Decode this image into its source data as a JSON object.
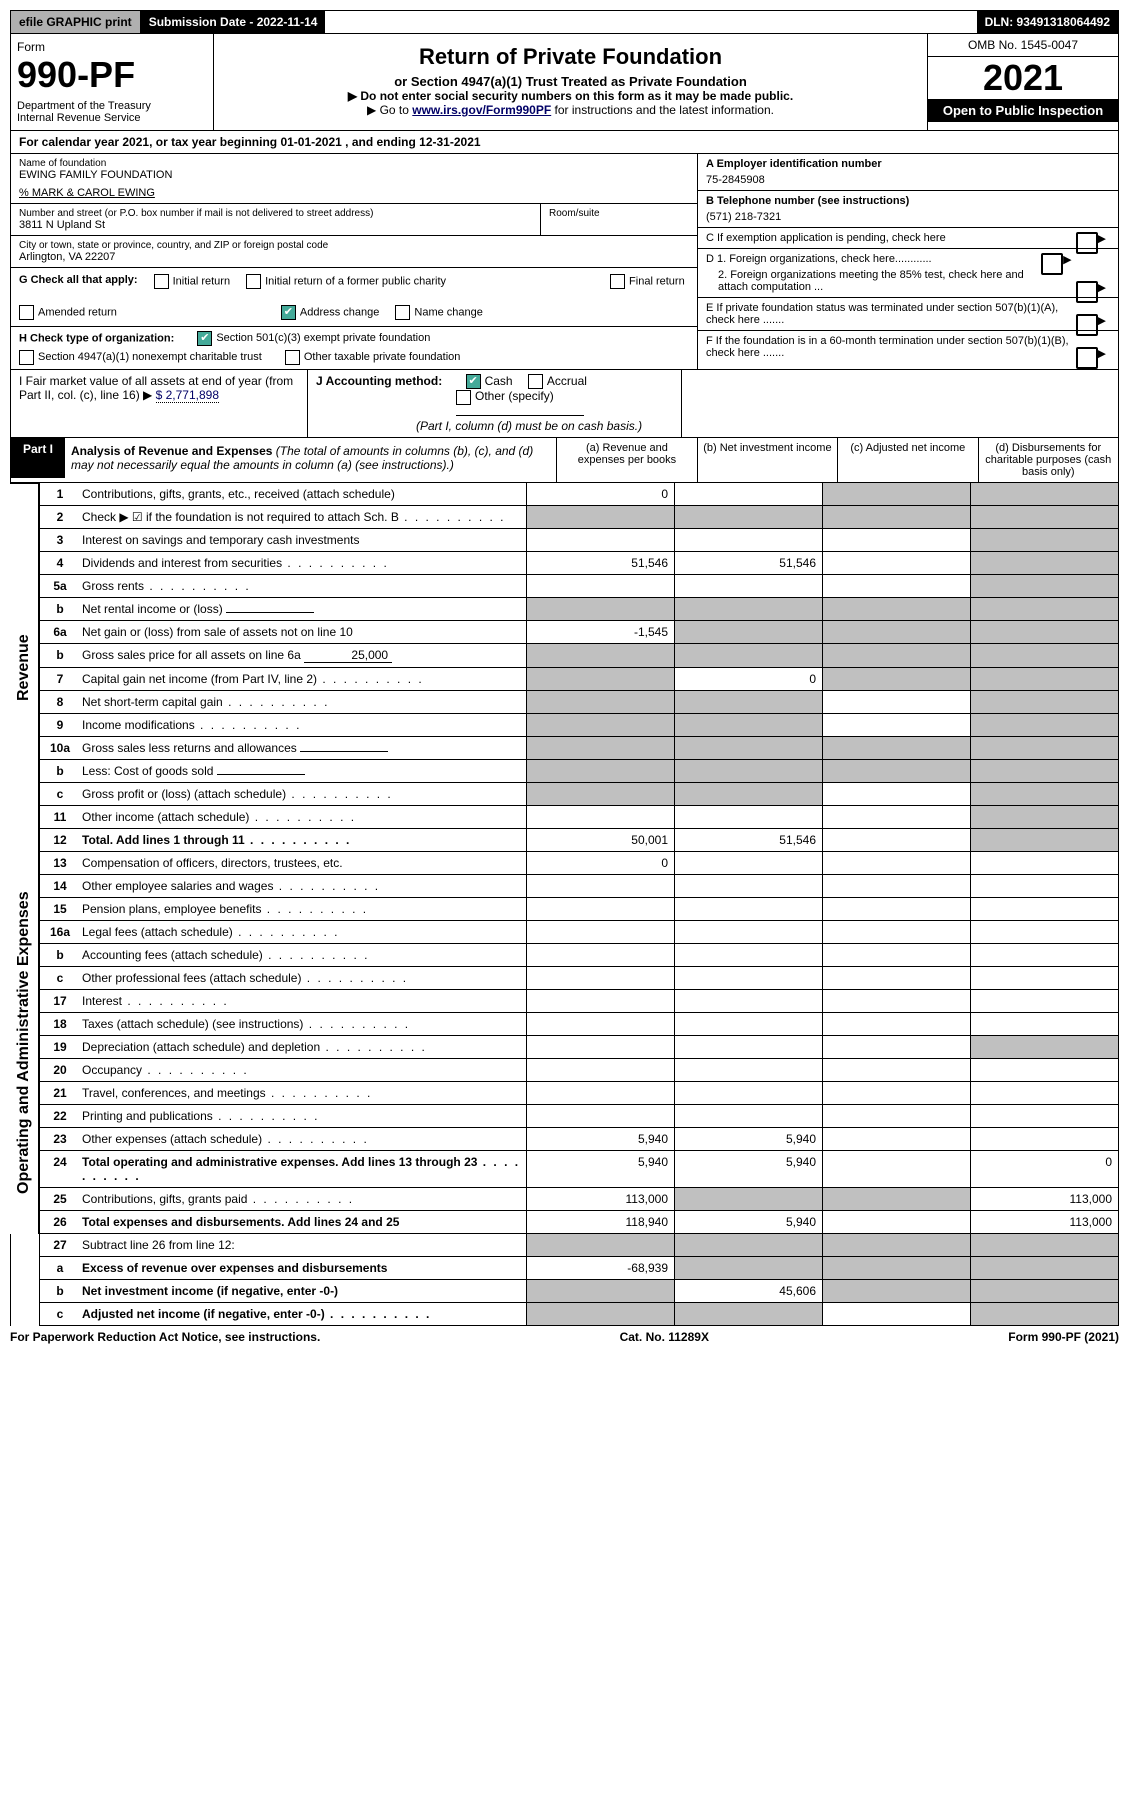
{
  "top": {
    "efile": "efile GRAPHIC print",
    "submission": "Submission Date - 2022-11-14",
    "dln": "DLN: 93491318064492"
  },
  "header": {
    "form_label": "Form",
    "form_number": "990-PF",
    "dept": "Department of the Treasury\nInternal Revenue Service",
    "title": "Return of Private Foundation",
    "subtitle": "or Section 4947(a)(1) Trust Treated as Private Foundation",
    "inst1": "▶ Do not enter social security numbers on this form as it may be made public.",
    "inst2_pre": "▶ Go to ",
    "inst2_link": "www.irs.gov/Form990PF",
    "inst2_post": " for instructions and the latest information.",
    "omb": "OMB No. 1545-0047",
    "year": "2021",
    "open": "Open to Public Inspection"
  },
  "cal_year": "For calendar year 2021, or tax year beginning 01-01-2021          , and ending 12-31-2021",
  "foundation": {
    "name_label": "Name of foundation",
    "name": "EWING FAMILY FOUNDATION",
    "co": "% MARK & CAROL EWING",
    "addr_label": "Number and street (or P.O. box number if mail is not delivered to street address)",
    "addr": "3811 N Upland St",
    "room_label": "Room/suite",
    "city_label": "City or town, state or province, country, and ZIP or foreign postal code",
    "city": "Arlington, VA  22207"
  },
  "right_info": {
    "a_label": "A Employer identification number",
    "a_val": "75-2845908",
    "b_label": "B Telephone number (see instructions)",
    "b_val": "(571) 218-7321",
    "c_label": "C If exemption application is pending, check here",
    "d1": "D 1. Foreign organizations, check here............",
    "d2": "2. Foreign organizations meeting the 85% test, check here and attach computation ...",
    "e_label": "E  If private foundation status was terminated under section 507(b)(1)(A), check here .......",
    "f_label": "F  If the foundation is in a 60-month termination under section 507(b)(1)(B), check here ......."
  },
  "g_check": {
    "label": "G Check all that apply:",
    "opts": [
      "Initial return",
      "Initial return of a former public charity",
      "Final return",
      "Amended return",
      "Address change",
      "Name change"
    ]
  },
  "h_check": {
    "label": "H Check type of organization:",
    "o1": "Section 501(c)(3) exempt private foundation",
    "o2": "Section 4947(a)(1) nonexempt charitable trust",
    "o3": "Other taxable private foundation"
  },
  "ij": {
    "i_label": "I Fair market value of all assets at end of year (from Part II, col. (c), line 16) ▶",
    "i_val": "$  2,771,898",
    "j_label": "J Accounting method:",
    "j_cash": "Cash",
    "j_accrual": "Accrual",
    "j_other": "Other (specify)",
    "j_note": "(Part I, column (d) must be on cash basis.)"
  },
  "part1": {
    "label": "Part I",
    "title": "Analysis of Revenue and Expenses",
    "note": "(The total of amounts in columns (b), (c), and (d) may not necessarily equal the amounts in column (a) (see instructions).)",
    "col_a": "(a)  Revenue and expenses per books",
    "col_b": "(b)  Net investment income",
    "col_c": "(c)  Adjusted net income",
    "col_d": "(d)  Disbursements for charitable purposes (cash basis only)"
  },
  "sides": {
    "revenue": "Revenue",
    "expenses": "Operating and Administrative Expenses"
  },
  "rows": [
    {
      "n": "1",
      "d": "Contributions, gifts, grants, etc., received (attach schedule)",
      "a": "0",
      "b": "",
      "c": "s",
      "dd": "s"
    },
    {
      "n": "2",
      "d": "Check ▶ ☑ if the foundation is not required to attach Sch. B",
      "a": "s",
      "b": "s",
      "c": "s",
      "dd": "s",
      "dotted": true,
      "nobold": true
    },
    {
      "n": "3",
      "d": "Interest on savings and temporary cash investments",
      "a": "",
      "b": "",
      "c": "",
      "dd": "s"
    },
    {
      "n": "4",
      "d": "Dividends and interest from securities",
      "a": "51,546",
      "b": "51,546",
      "c": "",
      "dd": "s",
      "dotted": true
    },
    {
      "n": "5a",
      "d": "Gross rents",
      "a": "",
      "b": "",
      "c": "",
      "dd": "s",
      "dotted": true
    },
    {
      "n": "b",
      "d": "Net rental income or (loss)",
      "a": "s",
      "b": "s",
      "c": "s",
      "dd": "s",
      "inline": ""
    },
    {
      "n": "6a",
      "d": "Net gain or (loss) from sale of assets not on line 10",
      "a": "-1,545",
      "b": "s",
      "c": "s",
      "dd": "s"
    },
    {
      "n": "b",
      "d": "Gross sales price for all assets on line 6a",
      "a": "s",
      "b": "s",
      "c": "s",
      "dd": "s",
      "inline": "25,000"
    },
    {
      "n": "7",
      "d": "Capital gain net income (from Part IV, line 2)",
      "a": "s",
      "b": "0",
      "c": "s",
      "dd": "s",
      "dotted": true
    },
    {
      "n": "8",
      "d": "Net short-term capital gain",
      "a": "s",
      "b": "s",
      "c": "",
      "dd": "s",
      "dotted": true
    },
    {
      "n": "9",
      "d": "Income modifications",
      "a": "s",
      "b": "s",
      "c": "",
      "dd": "s",
      "dotted": true
    },
    {
      "n": "10a",
      "d": "Gross sales less returns and allowances",
      "a": "s",
      "b": "s",
      "c": "s",
      "dd": "s",
      "inline": ""
    },
    {
      "n": "b",
      "d": "Less: Cost of goods sold",
      "a": "s",
      "b": "s",
      "c": "s",
      "dd": "s",
      "inline": "",
      "dotted": true
    },
    {
      "n": "c",
      "d": "Gross profit or (loss) (attach schedule)",
      "a": "s",
      "b": "s",
      "c": "",
      "dd": "s",
      "dotted": true
    },
    {
      "n": "11",
      "d": "Other income (attach schedule)",
      "a": "",
      "b": "",
      "c": "",
      "dd": "s",
      "dotted": true
    },
    {
      "n": "12",
      "d": "Total. Add lines 1 through 11",
      "a": "50,001",
      "b": "51,546",
      "c": "",
      "dd": "s",
      "bold": true,
      "dotted": true
    }
  ],
  "exp_rows": [
    {
      "n": "13",
      "d": "Compensation of officers, directors, trustees, etc.",
      "a": "0",
      "b": "",
      "c": "",
      "dd": ""
    },
    {
      "n": "14",
      "d": "Other employee salaries and wages",
      "a": "",
      "b": "",
      "c": "",
      "dd": "",
      "dotted": true
    },
    {
      "n": "15",
      "d": "Pension plans, employee benefits",
      "a": "",
      "b": "",
      "c": "",
      "dd": "",
      "dotted": true
    },
    {
      "n": "16a",
      "d": "Legal fees (attach schedule)",
      "a": "",
      "b": "",
      "c": "",
      "dd": "",
      "dotted": true
    },
    {
      "n": "b",
      "d": "Accounting fees (attach schedule)",
      "a": "",
      "b": "",
      "c": "",
      "dd": "",
      "dotted": true
    },
    {
      "n": "c",
      "d": "Other professional fees (attach schedule)",
      "a": "",
      "b": "",
      "c": "",
      "dd": "",
      "dotted": true
    },
    {
      "n": "17",
      "d": "Interest",
      "a": "",
      "b": "",
      "c": "",
      "dd": "",
      "dotted": true
    },
    {
      "n": "18",
      "d": "Taxes (attach schedule) (see instructions)",
      "a": "",
      "b": "",
      "c": "",
      "dd": "",
      "dotted": true
    },
    {
      "n": "19",
      "d": "Depreciation (attach schedule) and depletion",
      "a": "",
      "b": "",
      "c": "",
      "dd": "s",
      "dotted": true
    },
    {
      "n": "20",
      "d": "Occupancy",
      "a": "",
      "b": "",
      "c": "",
      "dd": "",
      "dotted": true
    },
    {
      "n": "21",
      "d": "Travel, conferences, and meetings",
      "a": "",
      "b": "",
      "c": "",
      "dd": "",
      "dotted": true
    },
    {
      "n": "22",
      "d": "Printing and publications",
      "a": "",
      "b": "",
      "c": "",
      "dd": "",
      "dotted": true
    },
    {
      "n": "23",
      "d": "Other expenses (attach schedule)",
      "a": "5,940",
      "b": "5,940",
      "c": "",
      "dd": "",
      "dotted": true
    },
    {
      "n": "24",
      "d": "Total operating and administrative expenses. Add lines 13 through 23",
      "a": "5,940",
      "b": "5,940",
      "c": "",
      "dd": "0",
      "bold": true,
      "dotted": true
    },
    {
      "n": "25",
      "d": "Contributions, gifts, grants paid",
      "a": "113,000",
      "b": "s",
      "c": "s",
      "dd": "113,000",
      "dotted": true
    },
    {
      "n": "26",
      "d": "Total expenses and disbursements. Add lines 24 and 25",
      "a": "118,940",
      "b": "5,940",
      "c": "",
      "dd": "113,000",
      "bold": true
    }
  ],
  "sum_rows": [
    {
      "n": "27",
      "d": "Subtract line 26 from line 12:",
      "a": "s",
      "b": "s",
      "c": "s",
      "dd": "s"
    },
    {
      "n": "a",
      "d": "Excess of revenue over expenses and disbursements",
      "a": "-68,939",
      "b": "s",
      "c": "s",
      "dd": "s",
      "bold": true
    },
    {
      "n": "b",
      "d": "Net investment income (if negative, enter -0-)",
      "a": "s",
      "b": "45,606",
      "c": "s",
      "dd": "s",
      "bold": true
    },
    {
      "n": "c",
      "d": "Adjusted net income (if negative, enter -0-)",
      "a": "s",
      "b": "s",
      "c": "",
      "dd": "s",
      "bold": true,
      "dotted": true
    }
  ],
  "footer": {
    "left": "For Paperwork Reduction Act Notice, see instructions.",
    "mid": "Cat. No. 11289X",
    "right": "Form 990-PF (2021)"
  }
}
